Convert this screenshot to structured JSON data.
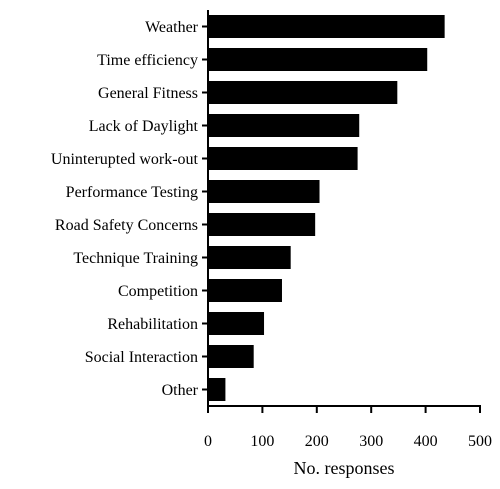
{
  "chart_data": {
    "type": "bar",
    "orientation": "horizontal",
    "categories": [
      "Weather",
      "Time efficiency",
      "General Fitness",
      "Lack of Daylight",
      "Uninterupted work-out",
      "Performance Testing",
      "Road Safety Concerns",
      "Technique Training",
      "Competition",
      "Rehabilitation",
      "Social Interaction",
      "Other"
    ],
    "values": [
      435,
      403,
      348,
      278,
      275,
      205,
      197,
      152,
      136,
      103,
      84,
      32
    ],
    "xlabel": "No. responses",
    "ylabel": "",
    "xlim": [
      0,
      500
    ],
    "xticks": [
      0,
      100,
      200,
      300,
      400,
      500
    ],
    "grid": false,
    "colors": {
      "bar": "#000000",
      "axis": "#000000"
    }
  }
}
